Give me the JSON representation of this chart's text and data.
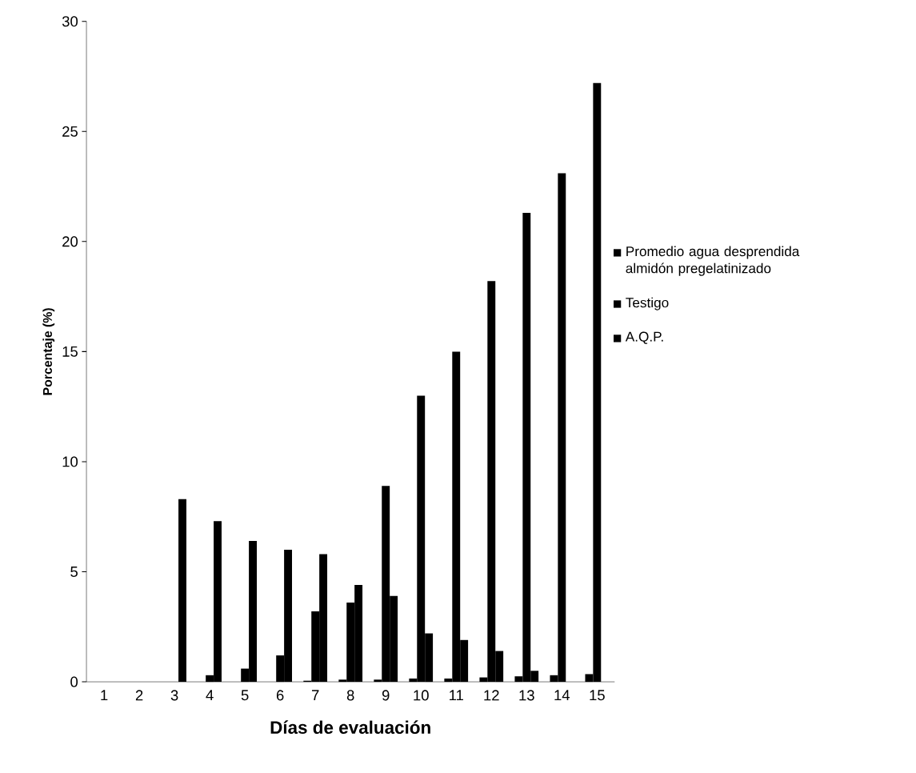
{
  "chart_data": {
    "type": "bar",
    "xlabel": "Días de evaluación",
    "ylabel": "Porcentaje (%)",
    "categories": [
      "1",
      "2",
      "3",
      "4",
      "5",
      "6",
      "7",
      "8",
      "9",
      "10",
      "11",
      "12",
      "13",
      "14",
      "15"
    ],
    "series": [
      {
        "name": "Promedio agua desprendida almidón pregelatinizado",
        "color": "#000000",
        "values": [
          0,
          0,
          0,
          0,
          0,
          0,
          0.05,
          0.1,
          0.1,
          0.15,
          0.15,
          0.2,
          0.25,
          0.3,
          0.35
        ]
      },
      {
        "name": "Testigo",
        "color": "#000000",
        "values": [
          0,
          0,
          0,
          0.3,
          0.6,
          1.2,
          3.2,
          3.6,
          8.9,
          13.0,
          15.0,
          18.2,
          21.3,
          23.1,
          27.2
        ]
      },
      {
        "name": "A.Q.P.",
        "color": "#000000",
        "values": [
          0,
          0,
          8.3,
          7.3,
          6.4,
          6.0,
          5.8,
          4.4,
          3.9,
          2.2,
          1.9,
          1.4,
          0.5,
          0,
          0
        ]
      }
    ],
    "ylim": [
      0,
      30
    ],
    "yticks": [
      0,
      5,
      10,
      15,
      20,
      25,
      30
    ],
    "grid": false,
    "legend": "right"
  }
}
